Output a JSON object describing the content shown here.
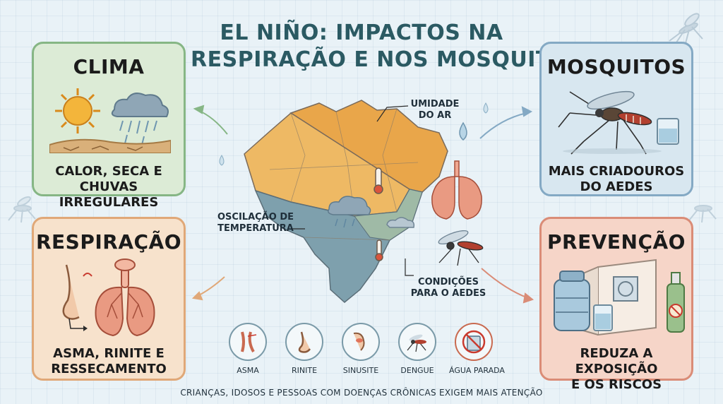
{
  "title": {
    "line1": "EL NIÑO: IMPACTOS NA",
    "line2": "RESPIRAÇÃO E NOS MOSQUITOS"
  },
  "cards": {
    "clima": {
      "heading": "CLIMA",
      "line1": "CALOR, SECA E",
      "line2": "CHUVAS IRREGULARES"
    },
    "mosquitos": {
      "heading": "MOSQUITOS",
      "line1": "MAIS CRIADOUROS",
      "line2": "DO AEDES"
    },
    "respiracao": {
      "heading": "RESPIRAÇÃO",
      "line1": "ASMA, RINITE E",
      "line2": "RESSECAMENTO"
    },
    "prevencao": {
      "heading": "PREVENÇÃO",
      "line1": "REDUZA A EXPOSIÇÃO",
      "line2": "E OS RISCOS"
    }
  },
  "map_labels": {
    "umidade_1": "UMIDADE",
    "umidade_2": "DO AR",
    "oscilacao_1": "OSCILAÇÃO DE",
    "oscilacao_2": "TEMPERATURA",
    "condicoes_1": "CONDIÇÕES",
    "condicoes_2": "PARA O AEDES"
  },
  "icons": [
    {
      "label": "ASMA",
      "icon": "bronchi-icon"
    },
    {
      "label": "RINITE",
      "icon": "nose-icon"
    },
    {
      "label": "SINUSITE",
      "icon": "sinus-face-icon"
    },
    {
      "label": "DENGUE",
      "icon": "mosquito-icon"
    },
    {
      "label": "ÁGUA PARADA",
      "icon": "no-standing-water-icon"
    }
  ],
  "footer": "CRIANÇAS, IDOSOS E PESSOAS COM DOENÇAS CRÔNICAS EXIGEM MAIS ATENÇÃO",
  "colors": {
    "background": "#e9f2f7",
    "title": "#2b5a63",
    "clima_card": "#dcebd6",
    "mosquitos_card": "#d8e7f0",
    "respiracao_card": "#f7e2cc",
    "prevencao_card": "#f6d5c8",
    "map_warm": "#e9a64a",
    "map_cool": "#6a8fa0"
  }
}
